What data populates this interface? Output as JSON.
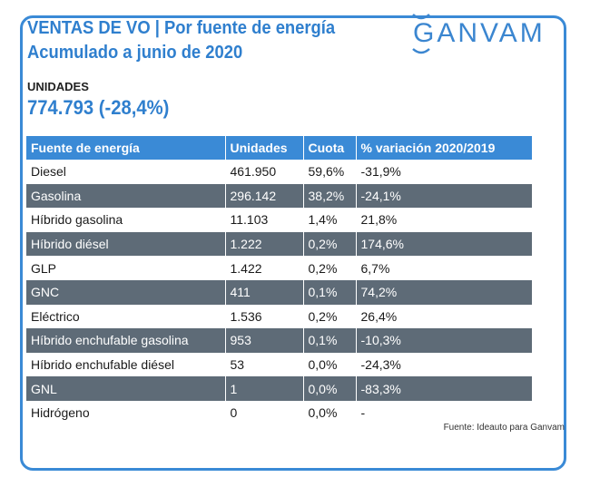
{
  "header": {
    "title": "VENTAS DE VO | Por fuente de energía",
    "subtitle": "Acumulado a junio de 2020",
    "brand": "GANVAM"
  },
  "summary": {
    "label": "UNIDADES",
    "value": "774.793 (-28,4%)"
  },
  "table": {
    "columns": [
      "Fuente de energía",
      "Unidades",
      "Cuota",
      "% variación 2020/2019"
    ],
    "rows": [
      [
        "Diesel",
        "461.950",
        "59,6%",
        "-31,9%"
      ],
      [
        "Gasolina",
        "296.142",
        "38,2%",
        "-24,1%"
      ],
      [
        "Híbrido gasolina",
        "11.103",
        "1,4%",
        "21,8%"
      ],
      [
        "Híbrido diésel",
        "1.222",
        "0,2%",
        "174,6%"
      ],
      [
        "GLP",
        "1.422",
        "0,2%",
        "6,7%"
      ],
      [
        "GNC",
        "411",
        "0,1%",
        "74,2%"
      ],
      [
        "Eléctrico",
        "1.536",
        "0,2%",
        "26,4%"
      ],
      [
        "Híbrido enchufable gasolina",
        "953",
        "0,1%",
        "-10,3%"
      ],
      [
        "Híbrido enchufable diésel",
        "53",
        "0,0%",
        "-24,3%"
      ],
      [
        "GNL",
        "1",
        "0,0%",
        "-83,3%"
      ],
      [
        "Hidrógeno",
        "0",
        "0,0%",
        "-"
      ]
    ]
  },
  "footer": {
    "source": "Fuente: Ideauto para Ganvam"
  },
  "colors": {
    "accent": "#3a8ad6",
    "shade_row": "#5e6b77"
  }
}
